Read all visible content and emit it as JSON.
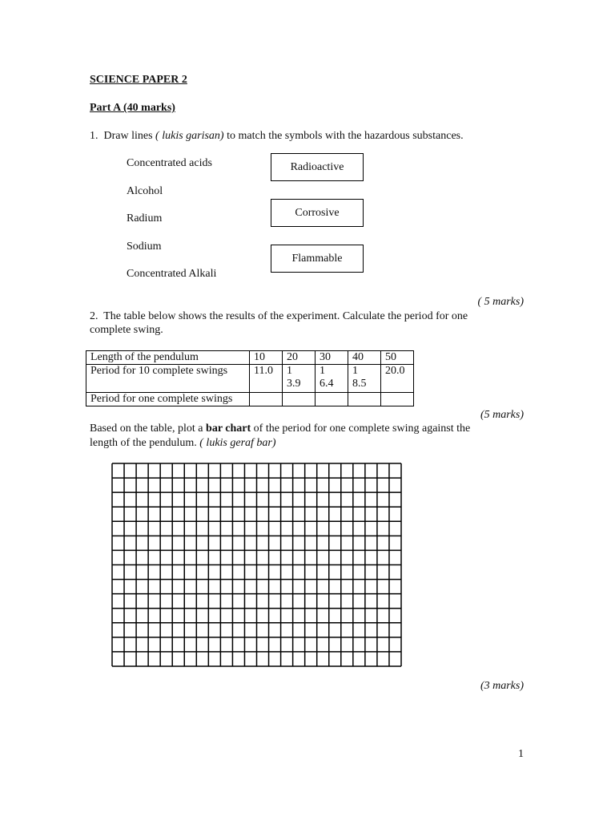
{
  "title": "SCIENCE PAPER 2",
  "part": "Part A (40 marks)",
  "q1": {
    "number": "1.",
    "text_before": "Draw lines ",
    "text_italic": "( lukis garisan)",
    "text_after": " to match the symbols with the hazardous substances.",
    "substances": [
      "Concentrated acids",
      "Alcohol",
      "Radium",
      "Sodium",
      "Concentrated Alkali"
    ],
    "symbols": [
      "Radioactive",
      "Corrosive",
      "Flammable"
    ],
    "marks": "( 5 marks)"
  },
  "q2": {
    "number": "2.",
    "text_line1": "The table below shows the results of the experiment.  Calculate the period for one",
    "text_line2": "complete swing.",
    "table": {
      "rows": [
        {
          "label": "Length of the pendulum",
          "cells": [
            "10",
            "20",
            "30",
            "40",
            "50"
          ]
        },
        {
          "label": "Period for 10 complete swings",
          "cells": [
            "11.0",
            "1\n3.9",
            "1\n6.4",
            "1\n8.5",
            "20.0"
          ]
        },
        {
          "label": "Period for one complete swings",
          "cells": [
            "",
            "",
            "",
            "",
            ""
          ]
        }
      ]
    },
    "marks": "(5 marks)",
    "plot_line1_before": "Based on the table, plot a ",
    "plot_bold": "bar chart",
    "plot_line1_after": " of the period for one complete swing against the",
    "plot_line2": "length of the pendulum. ",
    "plot_italic": "( lukis geraf bar)",
    "grid": {
      "columns": 24,
      "rows": 14
    },
    "plot_marks": "(3 marks)"
  },
  "page_number": "1"
}
